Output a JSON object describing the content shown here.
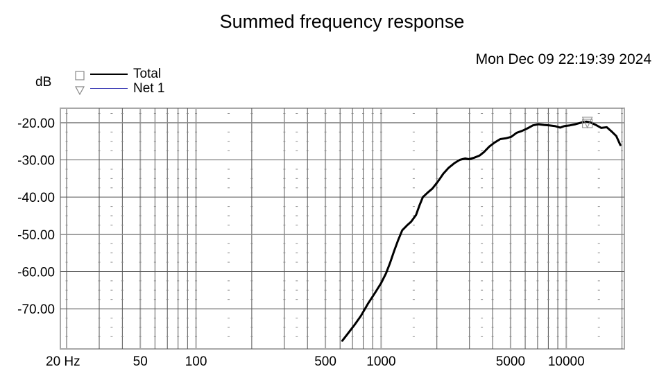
{
  "header": {
    "title": "Summed frequency response",
    "timestamp": "Mon Dec 09 22:19:39 2024",
    "y_unit_label": "dB"
  },
  "legend": {
    "items": [
      {
        "label": "Total",
        "marker": "square-marker",
        "color": "#000000"
      },
      {
        "label": "Net 1",
        "marker": "triangle-down-marker",
        "color": "#3a3ab4"
      }
    ]
  },
  "chart_data": {
    "type": "line",
    "title": "Summed frequency response",
    "xlabel": "Hz",
    "ylabel": "dB",
    "xscale": "log",
    "xlim": [
      18.5,
      20600
    ],
    "ylim": [
      -80.8,
      -16.1
    ],
    "grid": true,
    "legend_position": "top-left",
    "x_ticks": [
      20,
      50,
      100,
      500,
      1000,
      5000,
      10000
    ],
    "x_tick_labels": [
      "20 Hz",
      "50",
      "100",
      "500",
      "1000",
      "5000",
      "10000"
    ],
    "y_ticks": [
      -20,
      -30,
      -40,
      -50,
      -60,
      -70
    ],
    "y_tick_labels": [
      "-20.00",
      "-30.00",
      "-40.00",
      "-50.00",
      "-60.00",
      "-70.00"
    ],
    "series": [
      {
        "name": "Total",
        "color": "#000000",
        "x": [
          617,
          656,
          714,
          778,
          847,
          922,
          1000,
          1062,
          1117,
          1175,
          1236,
          1300,
          1380,
          1452,
          1543,
          1611,
          1680,
          1783,
          1892,
          2025,
          2166,
          2318,
          2481,
          2655,
          2841,
          2975,
          3184,
          3407,
          3590,
          3842,
          4111,
          4400,
          4708,
          5039,
          5392,
          5770,
          6176,
          6608,
          7072,
          7568,
          8099,
          8667,
          9275,
          9779,
          10465,
          11198,
          11984,
          12824,
          13495,
          14443,
          15455,
          16541,
          17700,
          18630,
          19600
        ],
        "values": [
          -78.6,
          -76.9,
          -74.5,
          -71.9,
          -68.7,
          -65.9,
          -63.1,
          -60.5,
          -57.7,
          -54.5,
          -51.5,
          -48.9,
          -47.6,
          -46.6,
          -44.8,
          -42.2,
          -40.0,
          -38.8,
          -37.7,
          -35.8,
          -33.7,
          -32.1,
          -30.9,
          -30.0,
          -29.6,
          -29.8,
          -29.4,
          -28.8,
          -27.9,
          -26.4,
          -25.3,
          -24.4,
          -24.2,
          -23.8,
          -22.7,
          -22.2,
          -21.5,
          -20.7,
          -20.4,
          -20.6,
          -20.7,
          -20.9,
          -21.3,
          -20.9,
          -20.7,
          -20.4,
          -20.0,
          -19.7,
          -19.9,
          -20.6,
          -21.4,
          -21.2,
          -22.5,
          -23.6,
          -26.0
        ]
      },
      {
        "name": "Net 1",
        "color": "#3a3ab4",
        "x": [],
        "values": []
      }
    ],
    "annotations": [
      {
        "type": "marker-overlap",
        "x": 13000,
        "y": -20.2,
        "note": "square and triangle markers on curve"
      }
    ]
  },
  "axes": {
    "y_ticks": [
      "-20.00",
      "-30.00",
      "-40.00",
      "-50.00",
      "-60.00",
      "-70.00"
    ],
    "x_ticks": [
      "20 Hz",
      "50",
      "100",
      "500",
      "1000",
      "5000",
      "10000"
    ]
  }
}
